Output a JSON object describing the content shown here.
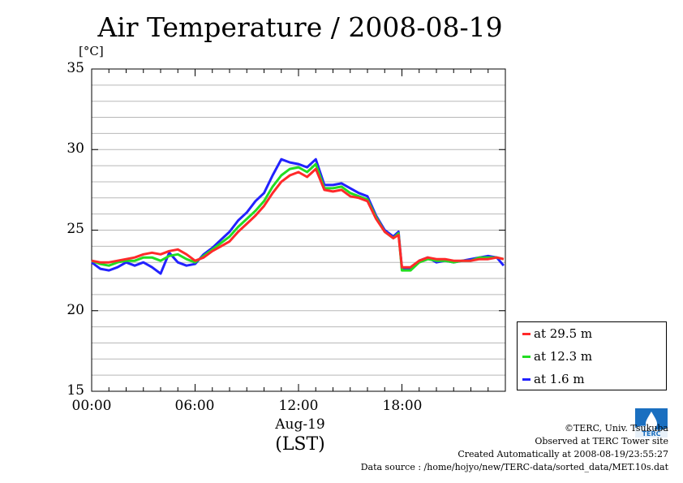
{
  "chart_data": {
    "type": "line",
    "title": "Air Temperature / 2008-08-19",
    "yunit": "[°C]",
    "ylim": [
      15,
      35
    ],
    "yticks": [
      "35",
      "30",
      "25",
      "20",
      "15"
    ],
    "xlim": [
      0,
      24
    ],
    "xticks": [
      "00:00",
      "06:00",
      "12:00",
      "18:00"
    ],
    "xdate": "Aug-19",
    "xlabel": "(LST)",
    "grid": true,
    "legend_position": "right-lower",
    "series": [
      {
        "name": "at 29.5 m",
        "color": "#ff2a2a",
        "x": [
          0,
          0.5,
          1,
          1.5,
          2,
          2.5,
          3,
          3.5,
          4,
          4.5,
          5,
          5.5,
          6,
          6.5,
          7,
          7.5,
          8,
          8.5,
          9,
          9.5,
          10,
          10.5,
          11,
          11.5,
          12,
          12.5,
          13,
          13.5,
          14,
          14.5,
          15,
          15.5,
          16,
          16.5,
          17,
          17.5,
          17.8,
          18,
          18.5,
          19,
          19.5,
          20,
          20.5,
          21,
          21.5,
          22,
          22.5,
          23,
          23.5,
          23.9
        ],
        "y": [
          23.1,
          23.0,
          23.0,
          23.1,
          23.2,
          23.3,
          23.5,
          23.6,
          23.5,
          23.7,
          23.8,
          23.5,
          23.1,
          23.3,
          23.7,
          24.0,
          24.3,
          24.9,
          25.4,
          25.9,
          26.5,
          27.3,
          28.0,
          28.4,
          28.6,
          28.3,
          28.8,
          27.5,
          27.4,
          27.5,
          27.1,
          27.0,
          26.8,
          25.7,
          24.9,
          24.5,
          24.7,
          22.7,
          22.7,
          23.1,
          23.3,
          23.2,
          23.2,
          23.1,
          23.1,
          23.1,
          23.2,
          23.2,
          23.3,
          23.2
        ]
      },
      {
        "name": "at 12.3 m",
        "color": "#22dd22",
        "x": [
          0,
          0.5,
          1,
          1.5,
          2,
          2.5,
          3,
          3.5,
          4,
          4.5,
          5,
          5.5,
          6,
          6.5,
          7,
          7.5,
          8,
          8.5,
          9,
          9.5,
          10,
          10.5,
          11,
          11.5,
          12,
          12.5,
          13,
          13.5,
          14,
          14.5,
          15,
          15.5,
          16,
          16.5,
          17,
          17.5,
          17.8,
          18,
          18.5,
          19,
          19.5,
          20,
          20.5,
          21,
          21.5,
          22,
          22.5,
          23,
          23.5,
          23.9
        ],
        "y": [
          23.1,
          22.9,
          22.8,
          23.0,
          23.1,
          23.1,
          23.3,
          23.3,
          23.1,
          23.4,
          23.5,
          23.2,
          23.0,
          23.4,
          23.8,
          24.2,
          24.6,
          25.2,
          25.7,
          26.2,
          26.8,
          27.7,
          28.4,
          28.8,
          28.9,
          28.6,
          29.1,
          27.6,
          27.6,
          27.7,
          27.3,
          27.1,
          26.9,
          25.8,
          24.9,
          24.5,
          24.8,
          22.5,
          22.5,
          23.0,
          23.2,
          23.1,
          23.1,
          23.0,
          23.1,
          23.1,
          23.3,
          23.3,
          23.3,
          23.2
        ]
      },
      {
        "name": "at 1.6 m",
        "color": "#2222ff",
        "x": [
          0,
          0.5,
          1,
          1.5,
          2,
          2.5,
          3,
          3.5,
          4,
          4.5,
          5,
          5.5,
          6,
          6.5,
          7,
          7.5,
          8,
          8.5,
          9,
          9.5,
          10,
          10.5,
          11,
          11.5,
          12,
          12.5,
          13,
          13.5,
          14,
          14.5,
          15,
          15.5,
          16,
          16.5,
          17,
          17.5,
          17.8,
          18,
          18.5,
          19,
          19.5,
          20,
          20.5,
          21,
          21.5,
          22,
          22.5,
          23,
          23.5,
          23.9
        ],
        "y": [
          23.0,
          22.6,
          22.5,
          22.7,
          23.0,
          22.8,
          23.0,
          22.7,
          22.3,
          23.6,
          23.0,
          22.8,
          22.9,
          23.5,
          23.9,
          24.4,
          24.9,
          25.6,
          26.1,
          26.8,
          27.3,
          28.4,
          29.4,
          29.2,
          29.1,
          28.9,
          29.4,
          27.8,
          27.8,
          27.9,
          27.6,
          27.3,
          27.1,
          25.9,
          25.0,
          24.6,
          24.9,
          22.6,
          22.6,
          23.1,
          23.3,
          23.0,
          23.1,
          23.0,
          23.1,
          23.2,
          23.3,
          23.4,
          23.3,
          22.8
        ]
      }
    ]
  },
  "credits": {
    "copyright": "©TERC, Univ. Tsukuba",
    "site": "Observed at TERC Tower site",
    "created": "Created Automatically at 2008-08-19/23:55:27",
    "source": "Data source : /home/hojyo/new/TERC-data/sorted_data/MET.10s.dat",
    "logo_text": "TERC"
  }
}
